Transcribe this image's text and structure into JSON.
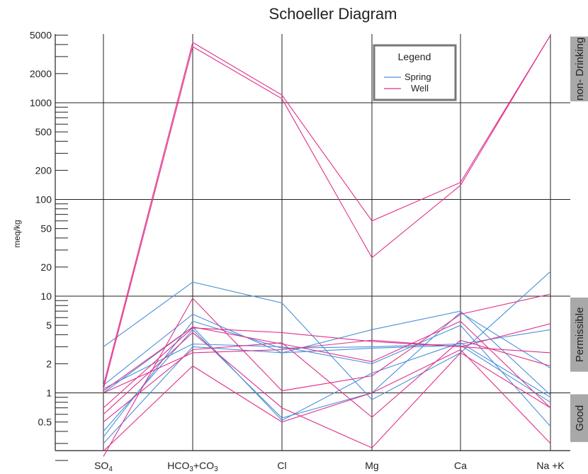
{
  "chart_data": {
    "type": "line",
    "title": "Schoeller Diagram",
    "ylabel": "meq/kg",
    "xlabel": "",
    "y_scale": "log",
    "ylim": [
      0.2,
      5000
    ],
    "categories": [
      "SO4",
      "HCO3+CO3",
      "Cl",
      "Mg",
      "Ca",
      "Na +K"
    ],
    "category_labels": [
      {
        "base": "SO",
        "sub": "4",
        "tail": ""
      },
      {
        "base": "HCO",
        "sub": "3",
        "tail": "+CO"
      },
      {
        "base": "Cl",
        "sub": "",
        "tail": ""
      },
      {
        "base": "Mg",
        "sub": "",
        "tail": ""
      },
      {
        "base": "Ca",
        "sub": "",
        "tail": ""
      },
      {
        "base": "Na +K",
        "sub": "",
        "tail": ""
      }
    ],
    "hco3_tail_sub": "3",
    "y_tick_labels": [
      "5000",
      "2000",
      "1000",
      "500",
      "200",
      "100",
      "50",
      "20",
      "10",
      "5",
      "2",
      "1",
      "0.5"
    ],
    "y_tick_values": [
      5000,
      2000,
      1000,
      500,
      200,
      100,
      50,
      20,
      10,
      5,
      2,
      1,
      0.5
    ],
    "zones": [
      {
        "label": "non- Drinking",
        "from": 1000,
        "to": 5000
      },
      {
        "label": "Permissible",
        "from": 1.6,
        "to": 10
      },
      {
        "label": "Good",
        "from": 0.3,
        "to": 1
      }
    ],
    "legend": {
      "title": "Legend",
      "placement": "top-right"
    },
    "series": [
      {
        "group": "Spring",
        "values": [
          3.0,
          14.0,
          8.5,
          0.85,
          2.6,
          18.0
        ]
      },
      {
        "group": "Spring",
        "values": [
          1.2,
          6.5,
          2.6,
          4.5,
          7.0,
          0.95
        ]
      },
      {
        "group": "Spring",
        "values": [
          0.35,
          5.5,
          2.9,
          3.0,
          3.2,
          4.5
        ]
      },
      {
        "group": "Spring",
        "values": [
          0.4,
          4.5,
          0.55,
          1.0,
          6.8,
          1.8
        ]
      },
      {
        "group": "Spring",
        "values": [
          1.1,
          3.2,
          3.0,
          2.0,
          5.0,
          0.45
        ]
      },
      {
        "group": "Spring",
        "values": [
          0.3,
          3.0,
          2.6,
          2.9,
          3.1,
          0.8
        ]
      },
      {
        "group": "Spring",
        "values": [
          1.0,
          4.8,
          0.52,
          1.6,
          3.3,
          0.9
        ]
      },
      {
        "group": "Well",
        "values": [
          1.2,
          4200,
          1200,
          60,
          150,
          5000
        ]
      },
      {
        "group": "Well",
        "values": [
          1.1,
          3800,
          1100,
          25,
          140,
          5000
        ]
      },
      {
        "group": "Well",
        "values": [
          0.22,
          9.5,
          1.05,
          1.5,
          6.5,
          10.5
        ]
      },
      {
        "group": "Well",
        "values": [
          1.05,
          4.8,
          3.2,
          2.1,
          5.5,
          0.7
        ]
      },
      {
        "group": "Well",
        "values": [
          0.7,
          4.7,
          4.2,
          3.4,
          3.0,
          5.2
        ]
      },
      {
        "group": "Well",
        "values": [
          1.0,
          2.6,
          2.8,
          3.5,
          3.0,
          2.6
        ]
      },
      {
        "group": "Well",
        "values": [
          0.5,
          2.8,
          3.3,
          0.56,
          3.5,
          1.9
        ]
      },
      {
        "group": "Well",
        "values": [
          0.6,
          4.2,
          0.7,
          0.27,
          2.6,
          0.7
        ]
      },
      {
        "group": "Well",
        "values": [
          0.25,
          1.9,
          0.5,
          1.0,
          2.8,
          0.3
        ]
      }
    ],
    "colors": {
      "Spring": "#4a90d9",
      "Well": "#e0308a"
    },
    "legend_labels": {
      "Spring": "Spring",
      "Well": "Well"
    },
    "grid": true
  }
}
